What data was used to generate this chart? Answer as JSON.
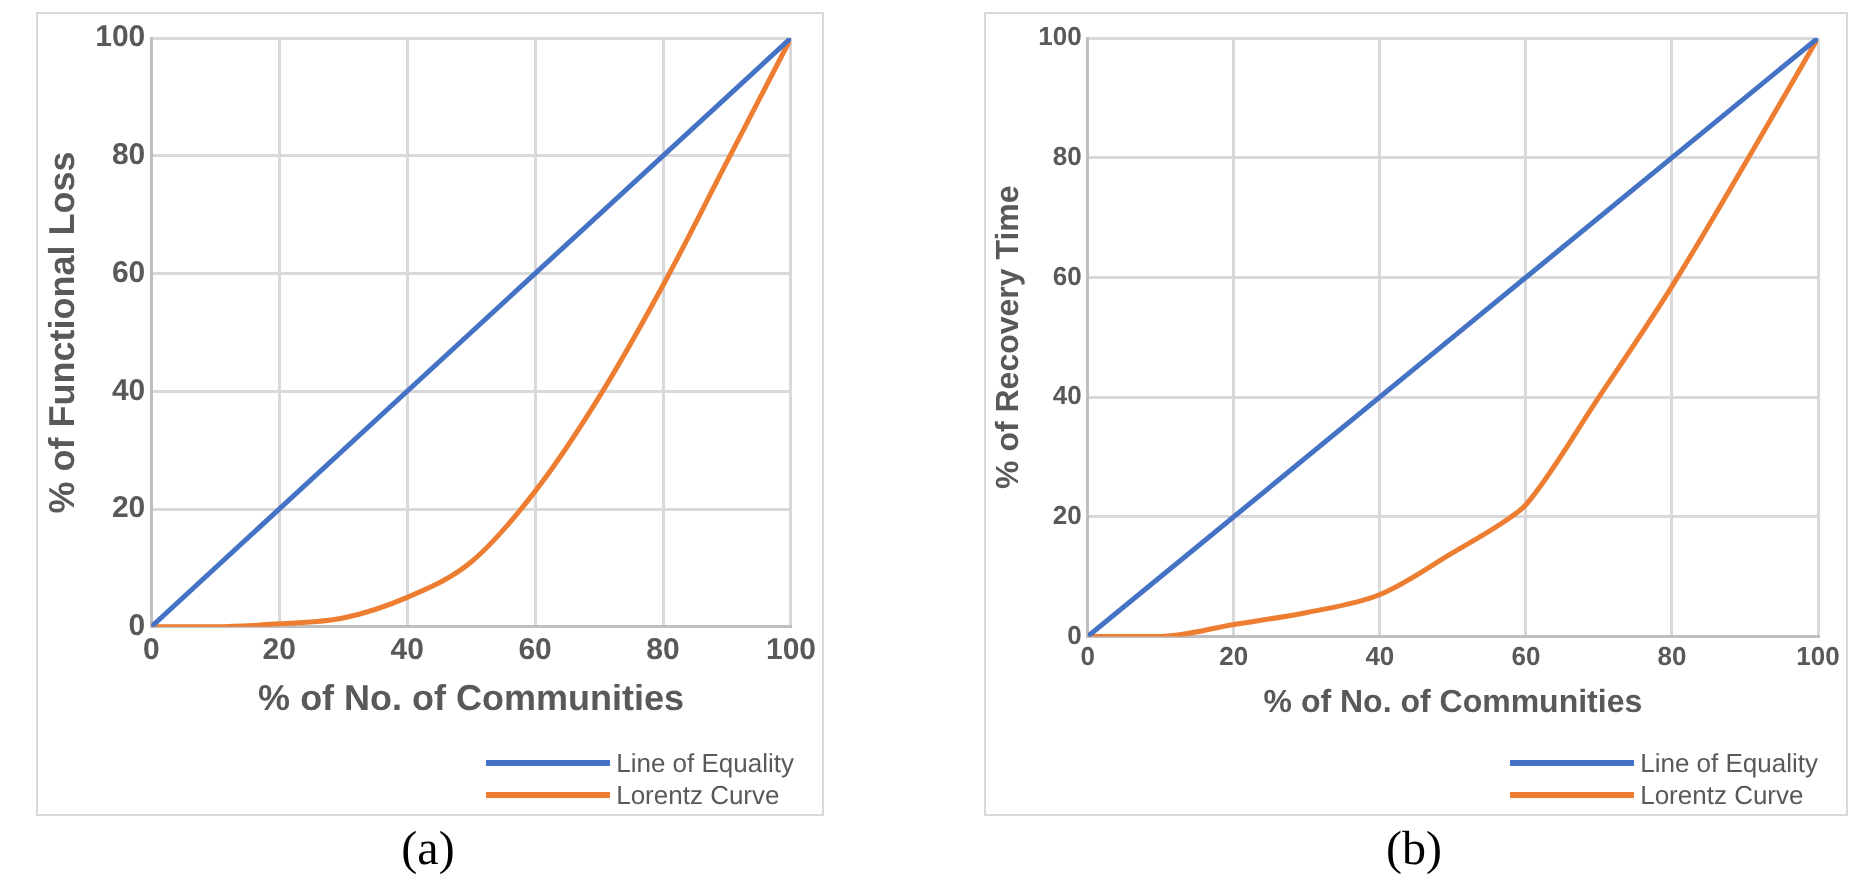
{
  "chart_data": [
    {
      "type": "line",
      "xlabel": "% of No. of Communities",
      "ylabel": "% of Functional Loss",
      "annotations": [
        "(a)"
      ],
      "xlim": [
        0,
        100
      ],
      "xticks": [
        0,
        20,
        40,
        60,
        80,
        100
      ],
      "ylim": [
        0,
        100
      ],
      "yticks": [
        0,
        20,
        40,
        60,
        80,
        100
      ],
      "grid": true,
      "legend": "bottom right",
      "marker": "none",
      "line_style": "solid",
      "series": [
        {
          "name": "Line of Equality",
          "color": "#4472c4",
          "x": [
            0,
            100
          ],
          "values": [
            0,
            100
          ]
        },
        {
          "name": "Lorentz Curve",
          "color": "#ed7d31",
          "x": [
            0,
            10,
            20,
            30,
            40,
            50,
            60,
            70,
            80,
            90,
            100
          ],
          "values": [
            0,
            0,
            0.5,
            1.5,
            5,
            11,
            23,
            39,
            58,
            79,
            100
          ]
        }
      ]
    },
    {
      "type": "line",
      "xlabel": "% of No. of Communities",
      "ylabel": "% of Recovery Time",
      "annotations": [
        "(b)"
      ],
      "xlim": [
        0,
        100
      ],
      "xticks": [
        0,
        20,
        40,
        60,
        80,
        100
      ],
      "ylim": [
        0,
        100
      ],
      "yticks": [
        0,
        20,
        40,
        60,
        80,
        100
      ],
      "grid": true,
      "legend": "bottom right",
      "marker": "none",
      "line_style": "solid",
      "series": [
        {
          "name": "Line of Equality",
          "color": "#4472c4",
          "x": [
            0,
            100
          ],
          "values": [
            0,
            100
          ]
        },
        {
          "name": "Lorentz Curve",
          "color": "#ed7d31",
          "x": [
            0,
            10,
            20,
            30,
            40,
            50,
            58,
            60,
            70,
            80,
            90,
            100
          ],
          "values": [
            0,
            0,
            2,
            4,
            7,
            14,
            20,
            22,
            40,
            58.5,
            79,
            100
          ]
        }
      ]
    }
  ]
}
